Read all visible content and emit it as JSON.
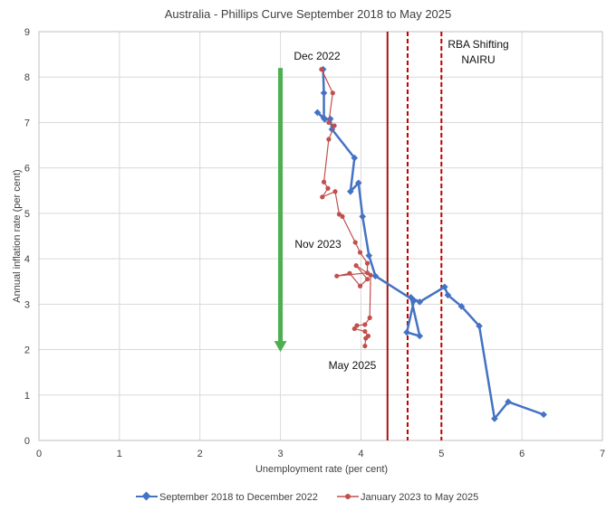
{
  "chart_data": {
    "type": "line",
    "title": "Australia - Phillips Curve September 2018 to May 2025",
    "xlabel": "Unemployment rate (per cent)",
    "ylabel": "Annual inflation rate (per cent)",
    "xlim": [
      0,
      7
    ],
    "ylim": [
      0,
      9
    ],
    "x_ticks": [
      "0",
      "1",
      "2",
      "3",
      "4",
      "5",
      "6",
      "7"
    ],
    "y_ticks": [
      "0",
      "1",
      "2",
      "3",
      "4",
      "5",
      "6",
      "7",
      "8",
      "9"
    ],
    "grid": true,
    "legend_position": "bottom",
    "series": [
      {
        "name": "September 2018 to December 2022",
        "color": "#4472c4",
        "marker": "diamond",
        "points": [
          [
            6.27,
            0.57
          ],
          [
            5.83,
            0.85
          ],
          [
            5.66,
            0.48
          ],
          [
            5.47,
            2.52
          ],
          [
            5.25,
            2.95
          ],
          [
            5.08,
            3.2
          ],
          [
            5.04,
            3.38
          ],
          [
            4.73,
            3.05
          ],
          [
            4.62,
            3.15
          ],
          [
            4.73,
            2.3
          ],
          [
            4.57,
            2.38
          ],
          [
            4.66,
            3.08
          ],
          [
            4.18,
            3.62
          ],
          [
            4.1,
            4.07
          ],
          [
            4.02,
            4.93
          ],
          [
            3.97,
            5.67
          ],
          [
            3.87,
            5.48
          ],
          [
            3.92,
            6.22
          ],
          [
            3.64,
            6.85
          ],
          [
            3.62,
            7.08
          ],
          [
            3.55,
            7.07
          ],
          [
            3.46,
            7.22
          ],
          [
            3.54,
            7.1
          ],
          [
            3.54,
            7.65
          ],
          [
            3.53,
            8.17
          ]
        ]
      },
      {
        "name": "January 2023 to May 2025",
        "color": "#c0504d",
        "marker": "circle",
        "points": [
          [
            3.51,
            8.17
          ],
          [
            3.65,
            7.65
          ],
          [
            3.6,
            7.0
          ],
          [
            3.67,
            6.93
          ],
          [
            3.6,
            6.63
          ],
          [
            3.54,
            5.69
          ],
          [
            3.59,
            5.55
          ],
          [
            3.52,
            5.36
          ],
          [
            3.68,
            5.48
          ],
          [
            3.73,
            4.98
          ],
          [
            3.77,
            4.93
          ],
          [
            3.93,
            4.36
          ],
          [
            3.99,
            4.14
          ],
          [
            4.08,
            3.9
          ],
          [
            4.08,
            3.69
          ],
          [
            3.7,
            3.62
          ],
          [
            3.86,
            3.68
          ],
          [
            3.99,
            3.4
          ],
          [
            4.08,
            3.55
          ],
          [
            3.94,
            3.85
          ],
          [
            4.12,
            3.64
          ],
          [
            4.11,
            2.7
          ],
          [
            4.05,
            2.55
          ],
          [
            3.95,
            2.53
          ],
          [
            3.92,
            2.46
          ],
          [
            4.05,
            2.4
          ],
          [
            4.09,
            2.3
          ],
          [
            4.06,
            2.25
          ],
          [
            4.05,
            2.08
          ]
        ]
      }
    ],
    "vertical_lines": [
      {
        "x": 4.33,
        "style": "solid",
        "color": "#a31515"
      },
      {
        "x": 4.58,
        "style": "dashed",
        "color": "#c00000"
      },
      {
        "x": 5.0,
        "style": "dashed",
        "color": "#c00000"
      }
    ],
    "arrow": {
      "x": 3.0,
      "y_from": 8.2,
      "y_to": 1.95,
      "color": "#4caf50"
    },
    "annotations": {
      "dec_2022": "Dec 2022",
      "nov_2023": "Nov 2023",
      "may_2025": "May 2025",
      "nairu_line1": "RBA Shifting",
      "nairu_line2": "NAIRU"
    }
  }
}
